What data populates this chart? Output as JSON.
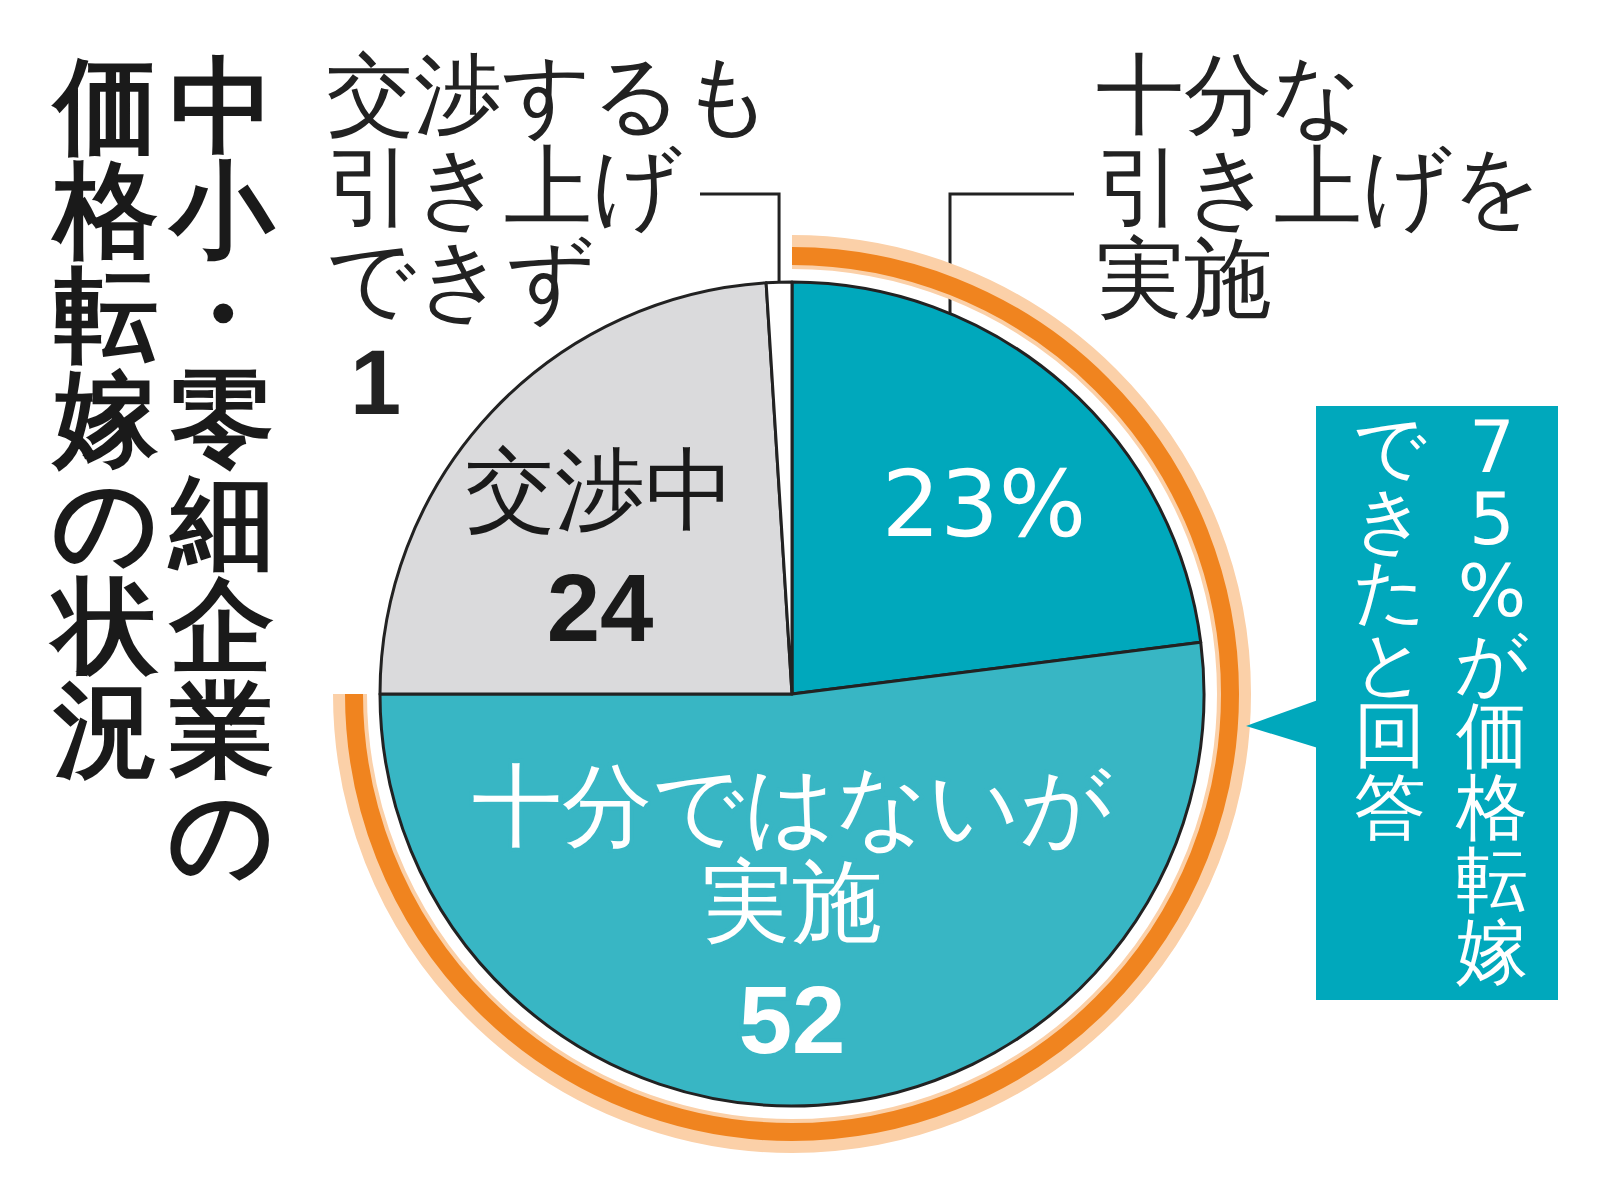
{
  "chart_data": {
    "type": "pie",
    "title": "中小・零細企業の価格転嫁の状況",
    "categories": [
      "十分な引き上げを実施",
      "十分ではないが実施",
      "交渉中",
      "交渉するも引き上げできず"
    ],
    "values": [
      23,
      52,
      24,
      1
    ],
    "colors": [
      "#00a8bc",
      "#38b6c4",
      "#dadadc",
      "#ffffff"
    ],
    "value_labels": [
      "23%",
      "52",
      "24",
      "1"
    ],
    "annotations": [
      "75%が価格転嫁できたと回答"
    ]
  }
}
